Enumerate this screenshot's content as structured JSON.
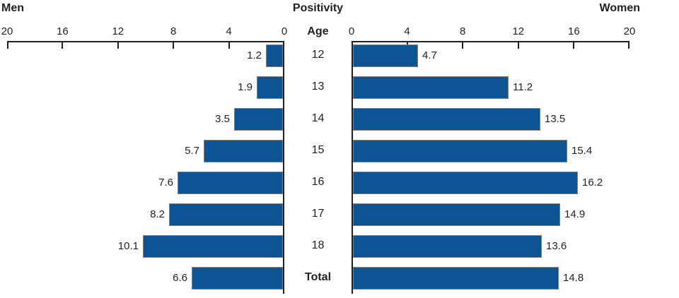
{
  "header": {
    "left": "Men",
    "center": "Positivity",
    "right": "Women"
  },
  "chart_data": {
    "type": "bar",
    "layout": "population-pyramid",
    "title": "Positivity",
    "category_axis_label": "Age",
    "categories": [
      "12",
      "13",
      "14",
      "15",
      "16",
      "17",
      "18",
      "Total"
    ],
    "series": [
      {
        "name": "Men",
        "side": "left",
        "values": [
          1.2,
          1.9,
          3.5,
          5.7,
          7.6,
          8.2,
          10.1,
          6.6
        ],
        "labels": [
          "1.2",
          "1.9",
          "3.5",
          "5.7",
          "7.6",
          "8.2",
          "10.1",
          "6.6"
        ]
      },
      {
        "name": "Women",
        "side": "right",
        "values": [
          4.7,
          11.2,
          13.5,
          15.4,
          16.2,
          14.9,
          13.6,
          14.8
        ],
        "labels": [
          "4.7",
          "11.2",
          "13.5",
          "15.4",
          "16.2",
          "14.9",
          "13.6",
          "14.8"
        ]
      }
    ],
    "axis": {
      "ticks": [
        0,
        4,
        8,
        12,
        16,
        20
      ],
      "min": 0,
      "max": 20,
      "grid": false,
      "value_labels_shown": true,
      "legend": "none"
    },
    "colors": {
      "bar_fill": "#0D5494",
      "bar_border": "#808080",
      "axis": "#231F20",
      "text": "#231F20"
    }
  }
}
